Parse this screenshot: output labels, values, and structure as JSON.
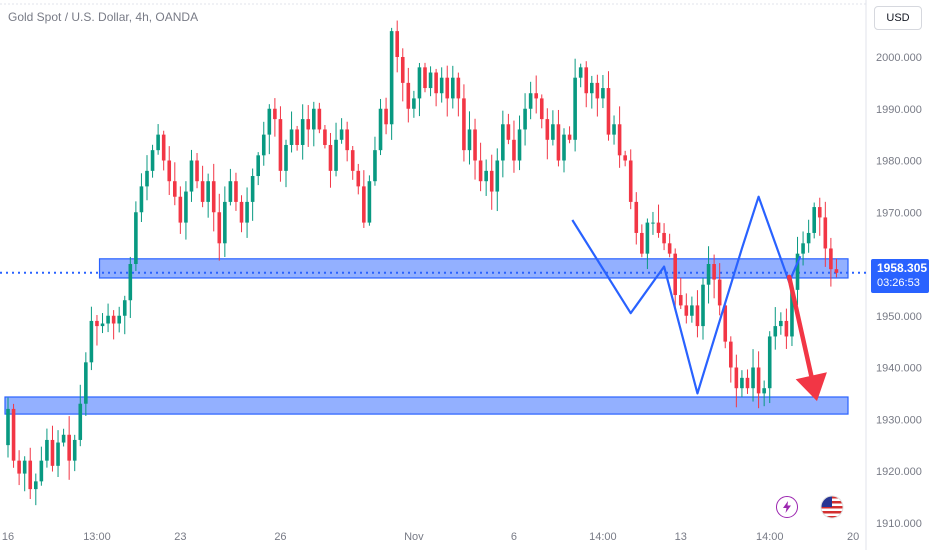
{
  "header": {
    "symbol_title": "Gold Spot / U.S. Dollar, 4h, OANDA",
    "currency_button": "USD"
  },
  "price_label": {
    "price": "1958.305",
    "countdown": "03:26:53"
  },
  "icons": {
    "events": "lightning-icon",
    "country": "us-flag-icon"
  },
  "colors": {
    "up": "#089981",
    "down": "#f23645",
    "zone_fill": "#6f96ff",
    "zone_border": "#2962ff",
    "pattern_line": "#2962ff",
    "arrow": "#f23645",
    "current_price_line": "#2962ff"
  },
  "chart_data": {
    "type": "candlestick",
    "timeframe": "4h",
    "ylim": [
      1908,
      2008
    ],
    "yticks": [
      "2000.000",
      "1990.000",
      "1980.000",
      "1970.000",
      "1960.000",
      "1950.000",
      "1940.000",
      "1930.000",
      "1920.000",
      "1910.000"
    ],
    "ytick_values": [
      2000,
      1990,
      1980,
      1970,
      1960,
      1950,
      1940,
      1930,
      1920,
      1910
    ],
    "xticks": [
      {
        "label": "16",
        "bar": 0
      },
      {
        "label": "13:00",
        "bar": 16
      },
      {
        "label": "23",
        "bar": 31
      },
      {
        "label": "26",
        "bar": 49
      },
      {
        "label": "Nov",
        "bar": 73
      },
      {
        "label": "6",
        "bar": 91
      },
      {
        "label": "14:00",
        "bar": 107
      },
      {
        "label": "13",
        "bar": 121
      },
      {
        "label": "14:00",
        "bar": 137
      },
      {
        "label": "20",
        "bar": 152
      }
    ],
    "current_price": 1958.305,
    "zones": [
      {
        "from": 1957.3,
        "to": 1961.0,
        "start_bar": 17
      },
      {
        "from": 1931.0,
        "to": 1934.3,
        "start_bar": 0
      }
    ],
    "pattern_path": [
      {
        "bar": 101.5,
        "y": 1968.5
      },
      {
        "bar": 112.0,
        "y": 1950.5
      },
      {
        "bar": 118.0,
        "y": 1959.5
      },
      {
        "bar": 124.0,
        "y": 1935.0
      },
      {
        "bar": 132.0,
        "y": 1963.0
      },
      {
        "bar": 135.0,
        "y": 1973.0
      },
      {
        "bar": 140.5,
        "y": 1956.5
      },
      {
        "bar": 142.5,
        "y": 1961.5
      }
    ],
    "projection_arrow": {
      "from_bar": 140.5,
      "from_y": 1957.5,
      "to_bar": 145.5,
      "to_y": 1933.5
    },
    "closes": [
      1932.0,
      1922.0,
      1919.5,
      1922.0,
      1916.5,
      1918.0,
      1922.0,
      1926.0,
      1921.0,
      1925.5,
      1927.0,
      1922.0,
      1926.0,
      1933.0,
      1941.0,
      1949.0,
      1948.0,
      1948.5,
      1950.0,
      1948.5,
      1950.0,
      1953.0,
      1960.0,
      1970.0,
      1975.0,
      1978.0,
      1982.0,
      1985.0,
      1980.0,
      1976.0,
      1973.0,
      1968.0,
      1974.0,
      1980.0,
      1976.0,
      1972.0,
      1976.0,
      1970.0,
      1964.0,
      1972.0,
      1976.0,
      1972.0,
      1968.0,
      1972.0,
      1977.0,
      1981.0,
      1985.0,
      1990.0,
      1988.0,
      1978.0,
      1983.0,
      1986.0,
      1983.0,
      1988.0,
      1986.0,
      1990.0,
      1986.0,
      1983.0,
      1978.0,
      1984.0,
      1986.0,
      1982.0,
      1978.0,
      1975.0,
      1968.0,
      1976.0,
      1982.0,
      1990.0,
      1987.0,
      2005.0,
      2000.0,
      1995.0,
      1990.0,
      1992.0,
      1998.0,
      1994.0,
      1997.0,
      1993.0,
      1996.0,
      1992.0,
      1996.0,
      1992.0,
      1982.0,
      1986.0,
      1980.0,
      1976.0,
      1978.0,
      1974.0,
      1980.0,
      1987.0,
      1984.0,
      1980.0,
      1986.0,
      1990.0,
      1993.0,
      1992.0,
      1988.0,
      1984.0,
      1987.0,
      1980.0,
      1985.0,
      1984.0,
      1996.0,
      1998.0,
      1993.0,
      1995.0,
      1992.0,
      1994.0,
      1985.0,
      1987.0,
      1981.0,
      1980.0,
      1972.0,
      1966.0,
      1962.0,
      1968.0,
      1968.0,
      1966.0,
      1964.0,
      1962.0,
      1954.0,
      1952.0,
      1950.0,
      1952.0,
      1948.0,
      1956.0,
      1960.0,
      1957.0,
      1952.0,
      1945.0,
      1940.0,
      1936.0,
      1938.0,
      1936.0,
      1940.0,
      1935.0,
      1936.0,
      1946.0,
      1948.0,
      1949.0,
      1946.0,
      1955.0,
      1962.0,
      1964.0,
      1966.0,
      1971.0,
      1969.0,
      1963.0,
      1959.0,
      1958.3
    ],
    "annotation": "4h candles; closes approximated from the image, OHLC reconstructed"
  }
}
